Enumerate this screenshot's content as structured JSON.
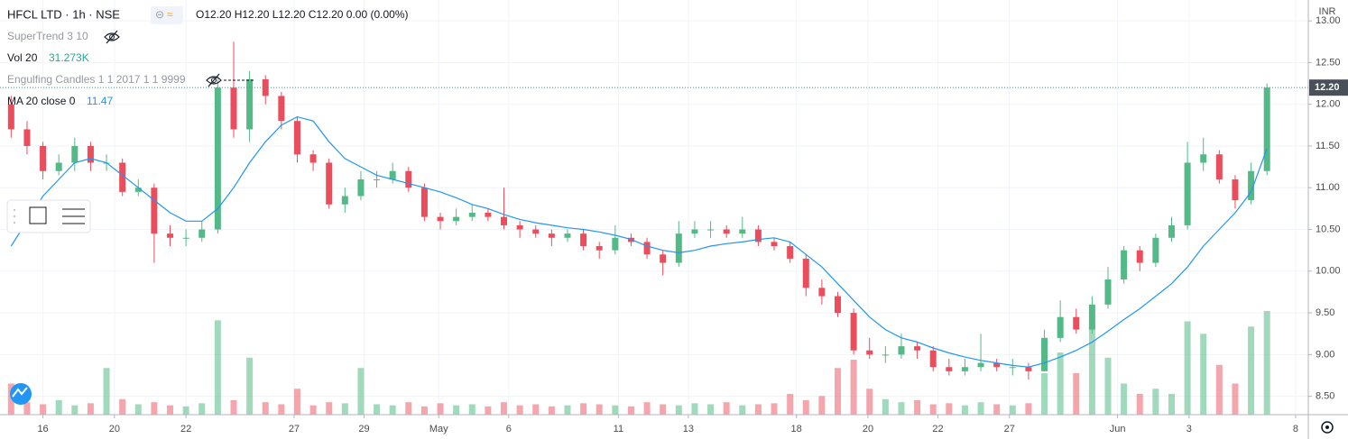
{
  "chart_data": {
    "type": "candlestick",
    "title": "HFCL LTD · 1h · NSE",
    "legend": {
      "ohlc": "O12.20 H12.20 L12.20 C12.20 0.00 (0.00%)",
      "indicators": [
        {
          "name": "SuperTrend 3 10"
        },
        {
          "name": "Vol 20",
          "value": "31.273K"
        },
        {
          "name": "Engulfing Candles 1 1 2017 1 1 9999"
        },
        {
          "name": "MA 20 close 0",
          "value": 11.47
        }
      ]
    },
    "currency": "INR",
    "up_color": "#53b987",
    "down_color": "#eb4d5c",
    "grid": true,
    "open": [
      12.0,
      11.7,
      11.5,
      11.2,
      11.3,
      11.5,
      11.3,
      11.3,
      10.95,
      11.0,
      10.45,
      10.4,
      10.4,
      10.5,
      12.2,
      11.7,
      12.3,
      12.1,
      11.8,
      11.4,
      11.3,
      10.8,
      10.9,
      11.1,
      11.1,
      11.2,
      11.0,
      10.65,
      10.6,
      10.65,
      10.7,
      10.65,
      10.55,
      10.5,
      10.45,
      10.4,
      10.45,
      10.3,
      10.25,
      10.4,
      10.35,
      10.2,
      10.1,
      10.45,
      10.5,
      10.5,
      10.45,
      10.5,
      10.35,
      10.3,
      10.15,
      9.8,
      9.7,
      9.5,
      9.05,
      9.0,
      9.0,
      9.1,
      9.05,
      8.85,
      8.8,
      8.85,
      8.9,
      8.85,
      8.85,
      8.8,
      9.2,
      9.45,
      9.3,
      9.6,
      9.9,
      10.25,
      10.1,
      10.4,
      10.55,
      11.3,
      11.4,
      11.1,
      10.85,
      11.2
    ],
    "high": [
      12.1,
      11.8,
      11.55,
      11.4,
      11.6,
      11.55,
      11.4,
      11.35,
      11.1,
      11.05,
      10.55,
      10.5,
      10.6,
      12.3,
      12.75,
      12.4,
      12.35,
      12.15,
      11.85,
      11.45,
      11.35,
      11.0,
      11.2,
      11.2,
      11.3,
      11.25,
      11.05,
      10.7,
      10.75,
      10.8,
      10.75,
      11.0,
      10.6,
      10.55,
      10.5,
      10.5,
      10.5,
      10.35,
      10.55,
      10.45,
      10.4,
      10.25,
      10.6,
      10.6,
      10.6,
      10.55,
      10.65,
      10.55,
      10.4,
      10.35,
      10.2,
      9.9,
      9.75,
      9.55,
      9.2,
      9.1,
      9.25,
      9.15,
      9.1,
      8.95,
      8.95,
      9.25,
      8.95,
      8.95,
      8.9,
      9.3,
      9.65,
      9.55,
      9.7,
      10.05,
      10.3,
      10.3,
      10.45,
      10.65,
      11.55,
      11.6,
      11.45,
      11.15,
      11.3,
      12.25
    ],
    "low": [
      11.6,
      11.4,
      11.1,
      11.15,
      11.2,
      11.2,
      11.2,
      10.9,
      10.9,
      10.1,
      10.3,
      10.3,
      10.35,
      10.45,
      11.6,
      11.55,
      12.0,
      11.7,
      11.3,
      11.2,
      10.75,
      10.7,
      10.85,
      11.0,
      11.05,
      10.95,
      10.6,
      10.5,
      10.55,
      10.6,
      10.6,
      10.5,
      10.4,
      10.4,
      10.3,
      10.35,
      10.25,
      10.15,
      10.2,
      10.3,
      10.15,
      9.95,
      10.05,
      10.4,
      10.4,
      10.4,
      10.4,
      10.3,
      10.25,
      10.1,
      9.7,
      9.6,
      9.45,
      9.0,
      8.95,
      8.9,
      8.95,
      8.95,
      8.8,
      8.75,
      8.75,
      8.8,
      8.8,
      8.75,
      8.7,
      8.8,
      9.15,
      9.25,
      9.25,
      9.55,
      9.85,
      10.0,
      10.05,
      10.35,
      10.5,
      11.2,
      11.05,
      10.75,
      10.8,
      11.15
    ],
    "close": [
      11.7,
      11.5,
      11.2,
      11.3,
      11.5,
      11.3,
      11.3,
      10.95,
      11.0,
      10.45,
      10.4,
      10.4,
      10.5,
      12.2,
      11.7,
      12.3,
      12.1,
      11.8,
      11.4,
      11.3,
      10.8,
      10.9,
      11.1,
      11.1,
      11.2,
      11.0,
      10.65,
      10.6,
      10.65,
      10.7,
      10.65,
      10.55,
      10.5,
      10.45,
      10.4,
      10.45,
      10.3,
      10.25,
      10.4,
      10.35,
      10.2,
      10.1,
      10.45,
      10.5,
      10.5,
      10.45,
      10.5,
      10.35,
      10.3,
      10.15,
      9.8,
      9.7,
      9.5,
      9.05,
      9.0,
      9.0,
      9.1,
      9.05,
      8.85,
      8.8,
      8.85,
      8.9,
      8.85,
      8.85,
      8.8,
      9.2,
      9.45,
      9.3,
      9.6,
      9.9,
      10.25,
      10.1,
      10.4,
      10.55,
      11.3,
      11.4,
      11.1,
      10.85,
      11.2,
      12.2
    ],
    "volume": {
      "ylim": [
        0,
        400
      ],
      "up_color": "rgba(83,185,135,0.55)",
      "down_color": "rgba(235,77,92,0.5)",
      "values": [
        30,
        12,
        10,
        14,
        9,
        11,
        45,
        15,
        10,
        12,
        9,
        8,
        11,
        91,
        14,
        55,
        12,
        10,
        25,
        9,
        12,
        11,
        45,
        10,
        9,
        12,
        8,
        11,
        9,
        10,
        8,
        12,
        9,
        10,
        8,
        9,
        11,
        10,
        9,
        8,
        12,
        10,
        9,
        11,
        10,
        12,
        9,
        10,
        11,
        20,
        14,
        18,
        45,
        53,
        25,
        15,
        12,
        14,
        10,
        11,
        9,
        12,
        10,
        9,
        11,
        40,
        60,
        40,
        85,
        55,
        30,
        20,
        25,
        20,
        90,
        78,
        48,
        30,
        85,
        100
      ]
    },
    "ma": {
      "color": "#2196f3",
      "values": [
        10.3,
        10.6,
        10.9,
        11.1,
        11.3,
        11.35,
        11.3,
        11.15,
        11.0,
        10.85,
        10.7,
        10.6,
        10.6,
        10.75,
        11.0,
        11.3,
        11.55,
        11.75,
        11.85,
        11.8,
        11.55,
        11.35,
        11.25,
        11.15,
        11.1,
        11.05,
        11.0,
        10.95,
        10.88,
        10.8,
        10.75,
        10.68,
        10.62,
        10.58,
        10.55,
        10.52,
        10.5,
        10.47,
        10.43,
        10.38,
        10.3,
        10.25,
        10.22,
        10.25,
        10.3,
        10.33,
        10.35,
        10.38,
        10.4,
        10.35,
        10.2,
        10.05,
        9.85,
        9.65,
        9.45,
        9.3,
        9.2,
        9.15,
        9.08,
        9.02,
        8.97,
        8.93,
        8.9,
        8.87,
        8.85,
        8.9,
        8.97,
        9.05,
        9.15,
        9.28,
        9.42,
        9.55,
        9.7,
        9.85,
        10.05,
        10.3,
        10.5,
        10.7,
        10.95,
        11.47
      ]
    },
    "last_price": {
      "value": 12.2,
      "label": "12.20"
    },
    "xlim": [
      -0.7,
      81.6
    ],
    "xticks": [
      {
        "value": 2.0,
        "label": "16"
      },
      {
        "value": 6.5,
        "label": "20"
      },
      {
        "value": 11.0,
        "label": "22"
      },
      {
        "value": 17.8,
        "label": "27"
      },
      {
        "value": 22.2,
        "label": "29"
      },
      {
        "value": 26.9,
        "label": "May"
      },
      {
        "value": 31.3,
        "label": "6"
      },
      {
        "value": 38.2,
        "label": "11"
      },
      {
        "value": 42.6,
        "label": "13"
      },
      {
        "value": 49.4,
        "label": "18"
      },
      {
        "value": 53.9,
        "label": "20"
      },
      {
        "value": 58.3,
        "label": "22"
      },
      {
        "value": 62.8,
        "label": "27"
      },
      {
        "value": 69.6,
        "label": "Jun"
      },
      {
        "value": 74.1,
        "label": "3"
      },
      {
        "value": 80.8,
        "label": "8"
      }
    ],
    "ylim": [
      8.28,
      13.25
    ],
    "yticks": [
      {
        "value": 8.5,
        "label": "8.50"
      },
      {
        "value": 9.0,
        "label": "9.00"
      },
      {
        "value": 9.5,
        "label": "9.50"
      },
      {
        "value": 10.0,
        "label": "10.00"
      },
      {
        "value": 10.5,
        "label": "10.50"
      },
      {
        "value": 11.0,
        "label": "11.00"
      },
      {
        "value": 11.5,
        "label": "11.50"
      },
      {
        "value": 12.0,
        "label": "12.00"
      },
      {
        "value": 12.5,
        "label": "12.50"
      },
      {
        "value": 13.0,
        "label": "13.00"
      }
    ]
  }
}
